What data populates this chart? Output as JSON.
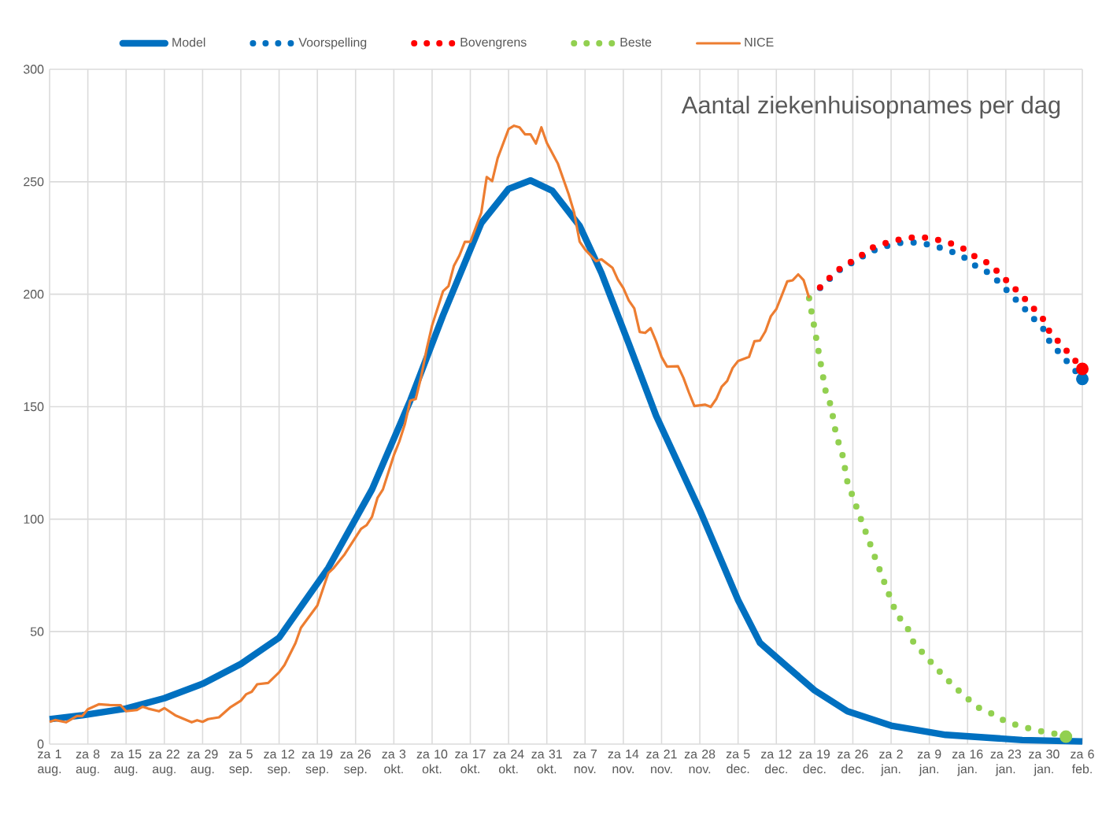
{
  "chart_data": {
    "type": "line",
    "title": "Aantal ziekenhuisopnames per dag",
    "categories": [
      "za 1 aug.",
      null,
      null,
      null,
      null,
      null,
      null,
      "za 8 aug.",
      null,
      null,
      null,
      null,
      null,
      null,
      "za 15 aug.",
      null,
      null,
      null,
      null,
      null,
      null,
      "za 22 aug.",
      null,
      null,
      null,
      null,
      null,
      null,
      "za 29 aug.",
      null,
      null,
      null,
      null,
      null,
      null,
      "za 5 sep.",
      null,
      null,
      null,
      null,
      null,
      null,
      "za 12 sep.",
      null,
      null,
      null,
      null,
      null,
      null,
      "za 19 sep.",
      null,
      null,
      null,
      null,
      null,
      null,
      "za 26 sep.",
      null,
      null,
      null,
      null,
      null,
      null,
      "za 3 okt.",
      null,
      null,
      null,
      null,
      null,
      null,
      "za 10 okt.",
      null,
      null,
      null,
      null,
      null,
      null,
      "za 17 okt.",
      null,
      null,
      null,
      null,
      null,
      null,
      "za 24 okt.",
      null,
      null,
      null,
      null,
      null,
      null,
      "za 31 okt.",
      null,
      null,
      null,
      null,
      null,
      null,
      "za 7 nov.",
      null,
      null,
      null,
      null,
      null,
      null,
      "za 14 nov.",
      null,
      null,
      null,
      null,
      null,
      null,
      "za 21 nov.",
      null,
      null,
      null,
      null,
      null,
      null,
      "za 28 nov.",
      null,
      null,
      null,
      null,
      null,
      null,
      "za 5 dec.",
      null,
      null,
      null,
      null,
      null,
      null,
      "za 12 dec.",
      null,
      null,
      null,
      null,
      null,
      null,
      "za 19 dec.",
      null,
      null,
      null,
      null,
      null,
      null,
      "za 26 dec.",
      null,
      null,
      null,
      null,
      null,
      null,
      "za 2 jan.",
      null,
      null,
      null,
      null,
      null,
      null,
      "za 9 jan.",
      null,
      null,
      null,
      null,
      null,
      null,
      "za 16 jan.",
      null,
      null,
      null,
      null,
      null,
      null,
      "za 23 jan.",
      null,
      null,
      null,
      null,
      null,
      null,
      "za 30 jan.",
      null,
      null,
      null,
      null,
      null,
      null,
      "za 6 feb."
    ],
    "ylim": [
      0,
      300
    ],
    "yticks": [
      0,
      50,
      100,
      150,
      200,
      250,
      300
    ],
    "grid": true,
    "legend": "top",
    "series": [
      {
        "name": "Model",
        "color": "#0070c0",
        "line_style": "solid",
        "values": [
          11.1,
          null,
          null,
          null,
          null,
          null,
          12.8,
          null,
          null,
          null,
          null,
          null,
          null,
          null,
          15.8,
          null,
          null,
          null,
          null,
          null,
          null,
          20.4,
          null,
          null,
          null,
          null,
          null,
          null,
          26.8,
          null,
          null,
          null,
          null,
          null,
          null,
          35.6,
          null,
          null,
          null,
          null,
          null,
          null,
          47.3,
          null,
          null,
          null,
          null,
          null,
          null,
          null,
          null,
          78.3,
          null,
          null,
          null,
          null,
          null,
          null,
          null,
          113.2,
          null,
          null,
          null,
          null,
          null,
          null,
          152.7,
          null,
          null,
          null,
          null,
          null,
          190.6,
          null,
          null,
          null,
          null,
          null,
          null,
          231.6,
          null,
          null,
          null,
          null,
          246.8,
          null,
          null,
          null,
          250.6,
          null,
          null,
          null,
          246,
          null,
          null,
          null,
          null,
          230.4,
          null,
          null,
          null,
          209.4,
          null,
          null,
          null,
          null,
          178,
          null,
          null,
          null,
          null,
          146,
          null,
          null,
          null,
          125,
          null,
          null,
          null,
          104,
          null,
          null,
          null,
          null,
          null,
          null,
          64,
          null,
          null,
          null,
          45,
          null,
          null,
          null,
          null,
          34.4,
          null,
          null,
          null,
          null,
          23.9,
          null,
          null,
          null,
          null,
          null,
          14.6,
          null,
          null,
          null,
          null,
          null,
          null,
          null,
          8.2,
          null,
          null,
          null,
          null,
          null,
          null,
          null,
          null,
          null,
          4.1,
          null,
          null,
          null,
          null,
          null,
          null,
          null,
          null,
          null,
          null,
          null,
          null,
          null,
          1.8,
          null,
          null,
          null,
          null,
          null,
          null,
          null,
          null,
          null,
          null,
          1.2
        ]
      },
      {
        "name": "Voorspelling",
        "color": "#0070c0",
        "line_style": "dotted",
        "values": [
          null,
          null,
          null,
          null,
          null,
          null,
          null,
          null,
          null,
          null,
          null,
          null,
          null,
          null,
          null,
          null,
          null,
          null,
          null,
          null,
          null,
          null,
          null,
          null,
          null,
          null,
          null,
          null,
          null,
          null,
          null,
          null,
          null,
          null,
          null,
          null,
          null,
          null,
          null,
          null,
          null,
          null,
          null,
          null,
          null,
          null,
          null,
          null,
          null,
          null,
          null,
          null,
          null,
          null,
          null,
          null,
          null,
          null,
          null,
          null,
          null,
          null,
          null,
          null,
          null,
          null,
          null,
          null,
          null,
          null,
          null,
          null,
          null,
          null,
          null,
          null,
          null,
          null,
          null,
          null,
          null,
          null,
          null,
          null,
          null,
          null,
          null,
          null,
          null,
          null,
          null,
          null,
          null,
          null,
          null,
          null,
          null,
          null,
          null,
          null,
          null,
          null,
          null,
          null,
          null,
          null,
          null,
          null,
          null,
          null,
          null,
          null,
          null,
          null,
          null,
          null,
          null,
          null,
          null,
          null,
          null,
          null,
          null,
          null,
          null,
          null,
          null,
          null,
          null,
          null,
          null,
          null,
          null,
          null,
          null,
          null,
          null,
          null,
          null,
          null,
          null,
          202.8,
          null,
          207.4,
          null,
          211.6,
          null,
          null,
          215.5,
          null,
          218.8,
          null,
          null,
          221.3,
          null,
          null,
          223.0,
          null,
          null,
          223.0,
          null,
          222.0,
          null,
          null,
          219.9,
          null,
          null,
          217.1,
          null,
          213.2,
          null,
          null,
          209.3,
          null,
          204.8,
          null,
          199.6,
          null,
          194.7,
          null,
          189.4,
          null,
          184.2,
          178.9,
          null,
          173.4,
          null,
          167.9,
          null,
          162.3
        ]
      },
      {
        "name": "Bovengrens",
        "color": "#ff0000",
        "line_style": "dotted",
        "values": [
          null,
          null,
          null,
          null,
          null,
          null,
          null,
          null,
          null,
          null,
          null,
          null,
          null,
          null,
          null,
          null,
          null,
          null,
          null,
          null,
          null,
          null,
          null,
          null,
          null,
          null,
          null,
          null,
          null,
          null,
          null,
          null,
          null,
          null,
          null,
          null,
          null,
          null,
          null,
          null,
          null,
          null,
          null,
          null,
          null,
          null,
          null,
          null,
          null,
          null,
          null,
          null,
          null,
          null,
          null,
          null,
          null,
          null,
          null,
          null,
          null,
          null,
          null,
          null,
          null,
          null,
          null,
          null,
          null,
          null,
          null,
          null,
          null,
          null,
          null,
          null,
          null,
          null,
          null,
          null,
          null,
          null,
          null,
          null,
          null,
          null,
          null,
          null,
          null,
          null,
          null,
          null,
          null,
          null,
          null,
          null,
          null,
          null,
          null,
          null,
          null,
          null,
          null,
          null,
          null,
          null,
          null,
          null,
          null,
          null,
          null,
          null,
          null,
          null,
          null,
          null,
          null,
          null,
          null,
          null,
          null,
          null,
          null,
          null,
          null,
          null,
          null,
          null,
          null,
          null,
          null,
          null,
          null,
          null,
          null,
          null,
          null,
          null,
          null,
          null,
          null,
          203.0,
          null,
          207.9,
          null,
          212.2,
          null,
          null,
          216.1,
          null,
          220.2,
          null,
          null,
          222.7,
          null,
          null,
          224.6,
          null,
          null,
          225.5,
          null,
          225.0,
          null,
          null,
          223.4,
          null,
          null,
          220.7,
          null,
          217.2,
          null,
          null,
          213.5,
          null,
          208.8,
          null,
          204.0,
          null,
          199.2,
          null,
          193.9,
          null,
          188.5,
          183.3,
          null,
          177.9,
          null,
          172.4,
          null,
          166.8
        ]
      },
      {
        "name": "Beste",
        "color": "#92d050",
        "line_style": "dotted",
        "values": [
          null,
          null,
          null,
          null,
          null,
          null,
          null,
          null,
          null,
          null,
          null,
          null,
          null,
          null,
          null,
          null,
          null,
          null,
          null,
          null,
          null,
          null,
          null,
          null,
          null,
          null,
          null,
          null,
          null,
          null,
          null,
          null,
          null,
          null,
          null,
          null,
          null,
          null,
          null,
          null,
          null,
          null,
          null,
          null,
          null,
          null,
          null,
          null,
          null,
          null,
          null,
          null,
          null,
          null,
          null,
          null,
          null,
          null,
          null,
          null,
          null,
          null,
          null,
          null,
          null,
          null,
          null,
          null,
          null,
          null,
          null,
          null,
          null,
          null,
          null,
          null,
          null,
          null,
          null,
          null,
          null,
          null,
          null,
          null,
          null,
          null,
          null,
          null,
          null,
          null,
          null,
          null,
          null,
          null,
          null,
          null,
          null,
          null,
          null,
          null,
          null,
          null,
          null,
          null,
          null,
          null,
          null,
          null,
          null,
          null,
          null,
          null,
          null,
          null,
          null,
          null,
          null,
          null,
          null,
          null,
          null,
          null,
          null,
          null,
          null,
          null,
          null,
          null,
          null,
          null,
          null,
          null,
          null,
          null,
          null,
          null,
          null,
          null,
          null,
          198.2,
          184.6,
          170.8,
          157.2,
          150.3,
          136.7,
          130.0,
          116.6,
          109.9,
          103.1,
          96.6,
          90.1,
          83.4,
          76.9,
          70.4,
          64.1,
          57.8,
          null,
          51.7,
          45.7,
          null,
          40.0,
          null,
          34.5,
          null,
          29.4,
          null,
          24.6,
          null,
          20.2,
          null,
          16.2,
          null,
          null,
          12.9,
          null,
          9.9,
          null,
          null,
          7.7,
          null,
          null,
          5.9,
          null,
          null,
          4.6,
          null,
          3.3,
          null,
          null,
          null
        ]
      },
      {
        "name": "NICE",
        "color": "#ed7d31",
        "line_style": "solid",
        "values": [
          9.9,
          10.7,
          null,
          9.7,
          11.1,
          12.5,
          12.5,
          15.5,
          null,
          17.7,
          null,
          17.4,
          null,
          17.3,
          14.6,
          null,
          15.2,
          16.6,
          15.8,
          null,
          14.6,
          16.0,
          null,
          12.8,
          null,
          null,
          9.7,
          10.6,
          9.9,
          11.1,
          null,
          11.9,
          null,
          16.2,
          null,
          19.3,
          22.2,
          23.3,
          26.6,
          null,
          27.2,
          null,
          31.9,
          35.2,
          null,
          44.9,
          51.7,
          null,
          null,
          61.6,
          null,
          76.0,
          78.3,
          null,
          84.4,
          null,
          null,
          95.7,
          97.3,
          101.0,
          109.4,
          113.2,
          null,
          128.4,
          134.5,
          142.1,
          152.7,
          153.4,
          163.3,
          175.5,
          186.1,
          null,
          201.3,
          203.6,
          212.7,
          217.2,
          223.3,
          223.3,
          null,
          236.2,
          252.1,
          250.3,
          260.5,
          null,
          273.4,
          274.9,
          274.2,
          271.1,
          271.1,
          267.0,
          274.2,
          267.3,
          null,
          258.2,
          null,
          244.4,
          236.3,
          223.4,
          219.9,
          null,
          214.7,
          215.5,
          null,
          211.8,
          206.5,
          202.7,
          197.2,
          193.7,
          183.2,
          182.8,
          184.9,
          179.1,
          172.1,
          167.8,
          null,
          168.0,
          162.8,
          156.3,
          150.3,
          null,
          150.9,
          149.9,
          153.4,
          158.9,
          161.4,
          167.2,
          170.3,
          null,
          172.1,
          179.1,
          179.4,
          183.5,
          190.2,
          193.4,
          199.5,
          205.7,
          206.2,
          208.8,
          206.2,
          198.3,
          null,
          null,
          null,
          null,
          null,
          null,
          null,
          null,
          null,
          null,
          null,
          null,
          null,
          null,
          null,
          null,
          null,
          null,
          null,
          null,
          null,
          null,
          null,
          null,
          null,
          null,
          null,
          null,
          null,
          null,
          null,
          null,
          null,
          null,
          null,
          null,
          null,
          null,
          null,
          null,
          null,
          null,
          null,
          null,
          null,
          null,
          null,
          null,
          null,
          null
        ]
      }
    ]
  }
}
